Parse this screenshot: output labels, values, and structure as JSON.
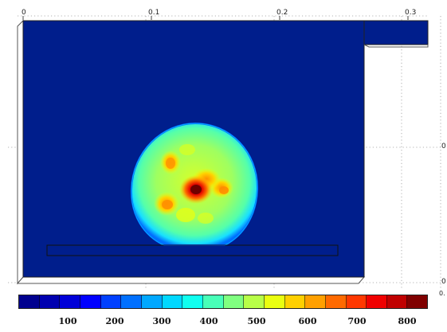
{
  "plot": {
    "x_ticks": [
      "0",
      "0.1",
      "0.2",
      "0.3"
    ],
    "right_ticks": [
      "0",
      "0"
    ],
    "corner_label": "0.",
    "background_color": "#001e8c"
  },
  "colorbar": {
    "colors": [
      "#00008f",
      "#0000b0",
      "#0000d8",
      "#0000ff",
      "#0040ff",
      "#0070ff",
      "#00a8ff",
      "#00d8ff",
      "#10ffef",
      "#48ffb8",
      "#80ff80",
      "#b8ff48",
      "#eaff10",
      "#ffd000",
      "#ffa000",
      "#ff6a00",
      "#ff3800",
      "#f00000",
      "#c00000",
      "#800000"
    ],
    "tick_labels": [
      "100",
      "200",
      "300",
      "400",
      "500",
      "600",
      "700",
      "800"
    ]
  },
  "chart_data": {
    "type": "heatmap",
    "description_of_values": "color scale values",
    "colorbar_range": [
      0,
      850
    ],
    "colorbar_ticks": [
      100,
      200,
      300,
      400,
      500,
      600,
      700,
      800
    ],
    "x_axis_ticks": [
      0,
      0.1,
      0.2,
      0.3
    ],
    "grid": true,
    "legend_placement": "bottom"
  }
}
